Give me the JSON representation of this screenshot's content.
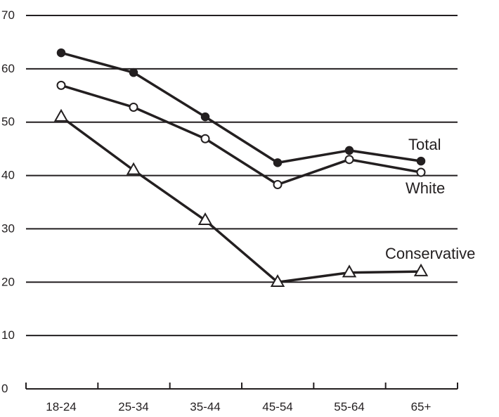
{
  "chart_data": {
    "type": "line",
    "categories": [
      "18-24",
      "25-34",
      "35-44",
      "45-54",
      "55-64",
      "65+"
    ],
    "ylim": [
      0,
      70
    ],
    "yticks": [
      0,
      10,
      20,
      30,
      40,
      50,
      60,
      70
    ],
    "grid": true,
    "series": [
      {
        "name": "Total",
        "marker": "filled-circle",
        "values": [
          63,
          59.3,
          51,
          42.4,
          44.7,
          42.7
        ]
      },
      {
        "name": "White",
        "marker": "open-circle",
        "values": [
          56.9,
          52.8,
          46.9,
          38.3,
          43,
          40.6
        ]
      },
      {
        "name": "Conservative",
        "marker": "open-triangle",
        "values": [
          51,
          41,
          31.6,
          20,
          21.8,
          22
        ]
      }
    ]
  },
  "colors": {
    "ink": "#231f20",
    "background": "#ffffff"
  }
}
